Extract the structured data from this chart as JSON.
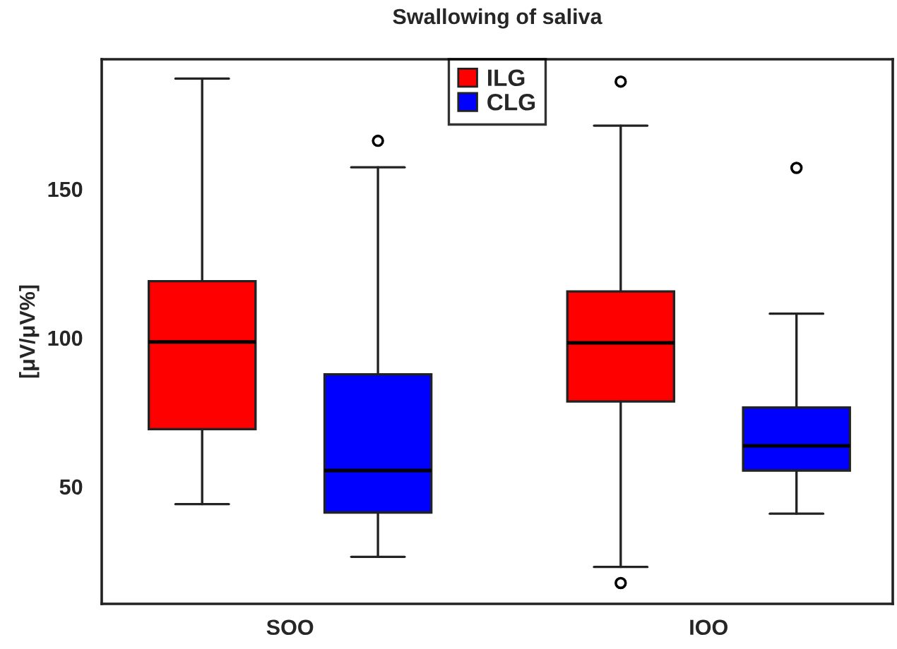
{
  "chart_data": {
    "type": "box",
    "title": "Swallowing of saliva",
    "ylabel": "[μV/μV%]",
    "categories": [
      "SOO",
      "IOO"
    ],
    "series": [
      {
        "name": "ILG",
        "color": "#ff0000",
        "boxes": [
          {
            "low": 44.1,
            "q1": 69.3,
            "median": 98.6,
            "q3": 119.0,
            "high": 187.1
          },
          {
            "low": 23.0,
            "q1": 78.6,
            "median": 98.3,
            "q3": 115.6,
            "high": 171.3,
            "outliers": [
              186.1,
              17.6
            ]
          }
        ]
      },
      {
        "name": "CLG",
        "color": "#0000ff",
        "boxes": [
          {
            "low": 26.4,
            "q1": 41.3,
            "median": 55.4,
            "q3": 87.7,
            "high": 157.3,
            "outliers": [
              166.2
            ]
          },
          {
            "low": 40.9,
            "q1": 55.4,
            "median": 63.7,
            "q3": 76.6,
            "high": 108.1,
            "outliers": [
              157.1
            ]
          }
        ]
      }
    ],
    "ylim": [
      10.6,
      193.6
    ],
    "yticks": [
      50,
      100,
      150
    ],
    "grid": false,
    "legend": "top"
  }
}
